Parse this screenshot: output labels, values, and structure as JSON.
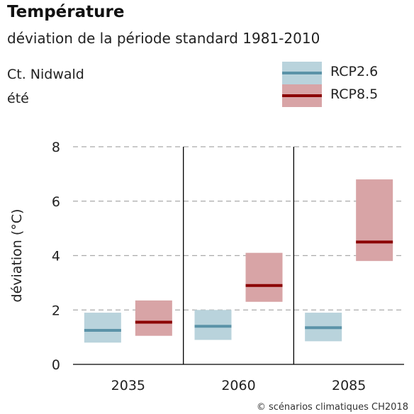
{
  "header": {
    "title": "Température",
    "subtitle": "déviation de la période standard 1981-2010",
    "region": "Ct. Nidwald",
    "season": "été"
  },
  "credit": "© scénarios climatiques CH2018",
  "colors": {
    "rcp26_fill": "#b9d3dc",
    "rcp26_line": "#5b93a8",
    "rcp85_fill": "#d8a4a6",
    "rcp85_line": "#8b0000",
    "grid": "#aaaaaa",
    "separator": "#000000"
  },
  "chart_data": {
    "type": "range-bar",
    "ylabel": "déviation (°C)",
    "ylim": [
      0,
      8
    ],
    "yticks": [
      "0",
      "2",
      "4",
      "6",
      "8"
    ],
    "grid": "horizontal dashed",
    "legend_position": "top-right",
    "categories": [
      "2035",
      "2060",
      "2085"
    ],
    "series": [
      {
        "name": "RCP2.6",
        "color_key": "rcp26",
        "low": [
          0.8,
          0.9,
          0.85
        ],
        "median": [
          1.25,
          1.4,
          1.35
        ],
        "high": [
          1.9,
          2.0,
          1.9
        ]
      },
      {
        "name": "RCP8.5",
        "color_key": "rcp85",
        "low": [
          1.05,
          2.3,
          3.8
        ],
        "median": [
          1.55,
          2.9,
          4.5
        ],
        "high": [
          2.35,
          4.1,
          6.8
        ]
      }
    ]
  }
}
